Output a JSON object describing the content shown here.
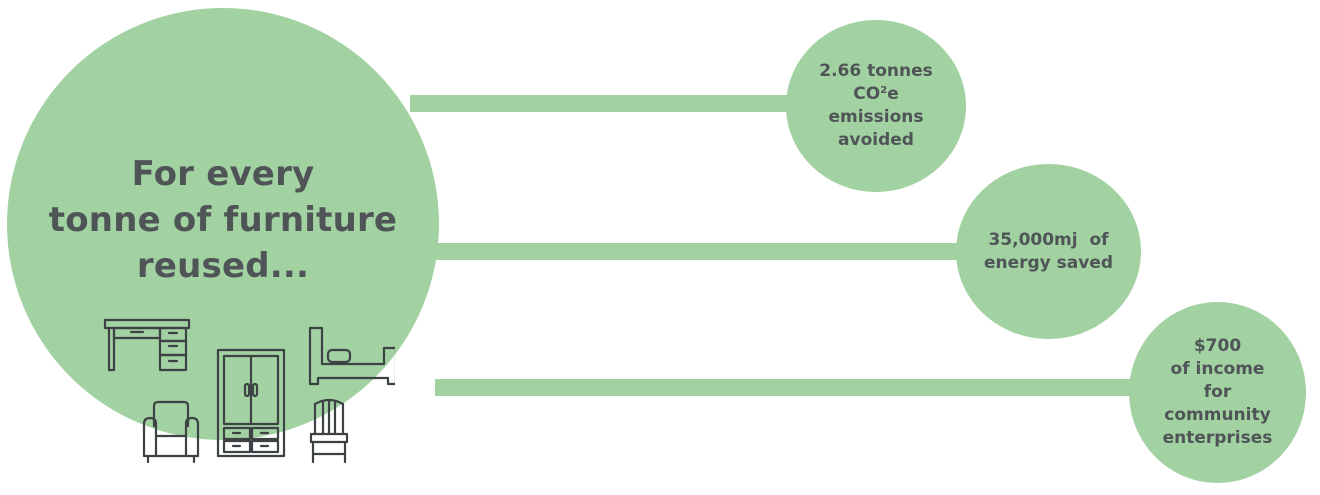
{
  "main": {
    "heading_lines": [
      "For every",
      "tonne of furniture",
      "reused..."
    ]
  },
  "stats": [
    {
      "lines": [
        "2.66 tonnes",
        "CO",
        "e",
        "emissions",
        "avoided"
      ],
      "sup": "2"
    },
    {
      "value": "35,000mj",
      "suffix": "of",
      "rest": "energy saved"
    },
    {
      "lines": [
        "$700",
        "of income",
        "for",
        "community",
        "enterprises"
      ]
    }
  ],
  "icons": [
    "desk-icon",
    "bed-icon",
    "wardrobe-icon",
    "armchair-icon",
    "chair-icon"
  ],
  "colors": {
    "circle": "#a2d1a2",
    "text": "#4f5557",
    "icon_stroke": "#3d4244"
  }
}
